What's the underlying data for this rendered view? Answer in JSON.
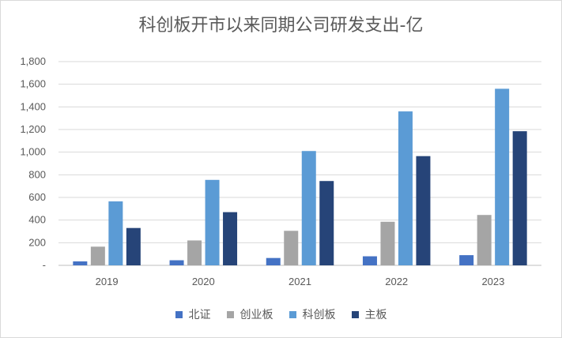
{
  "chart_data": {
    "type": "bar",
    "title": "科创板开市以来同期公司研发支出-亿",
    "categories": [
      "2019",
      "2020",
      "2021",
      "2022",
      "2023"
    ],
    "series": [
      {
        "name": "北证",
        "color": "#4472c4",
        "values": [
          35,
          45,
          65,
          80,
          90
        ]
      },
      {
        "name": "创业板",
        "color": "#a5a5a5",
        "values": [
          165,
          220,
          305,
          385,
          445
        ]
      },
      {
        "name": "科创板",
        "color": "#5b9bd5",
        "values": [
          565,
          755,
          1010,
          1360,
          1560
        ]
      },
      {
        "name": "主板",
        "color": "#264478",
        "values": [
          330,
          470,
          745,
          965,
          1185
        ]
      }
    ],
    "yticks": [
      "-",
      "200",
      "400",
      "600",
      "800",
      "1,000",
      "1,200",
      "1,400",
      "1,600",
      "1,800"
    ],
    "ylim": [
      0,
      1800
    ],
    "grid": true,
    "legend_position": "bottom"
  }
}
